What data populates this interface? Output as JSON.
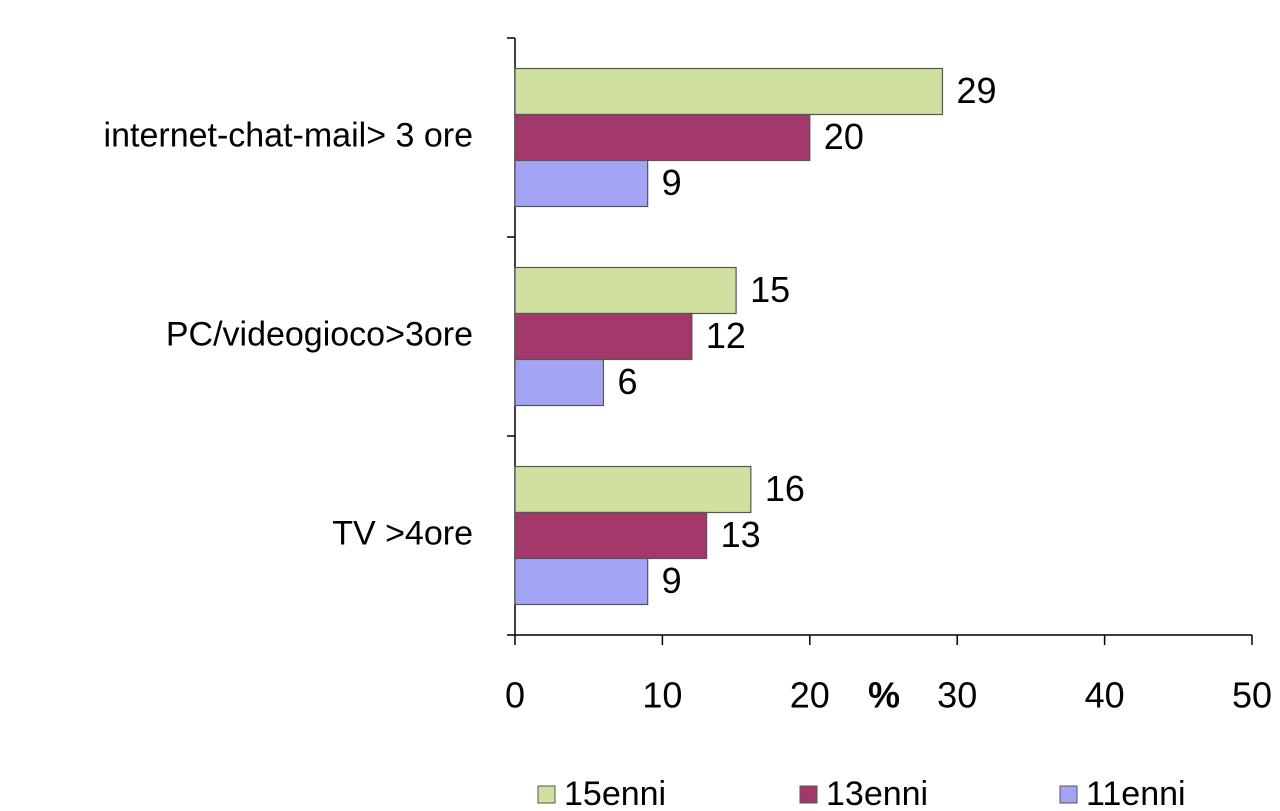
{
  "chart_data": {
    "type": "bar",
    "orientation": "horizontal",
    "categories": [
      "internet-chat-mail> 3 ore",
      "PC/videogioco>3ore",
      "TV >4ore"
    ],
    "series": [
      {
        "name": "15enni",
        "color": "#cfe0a0",
        "values": [
          29,
          15,
          16
        ]
      },
      {
        "name": "13enni",
        "color": "#a3386a",
        "values": [
          20,
          12,
          13
        ]
      },
      {
        "name": "11enni",
        "color": "#a4a4f4",
        "values": [
          9,
          6,
          9
        ]
      }
    ],
    "xlabel": "%",
    "xlim": [
      0,
      50
    ],
    "xticks": [
      0,
      10,
      20,
      30,
      40,
      50
    ],
    "grid": false,
    "legend": "bottom"
  }
}
